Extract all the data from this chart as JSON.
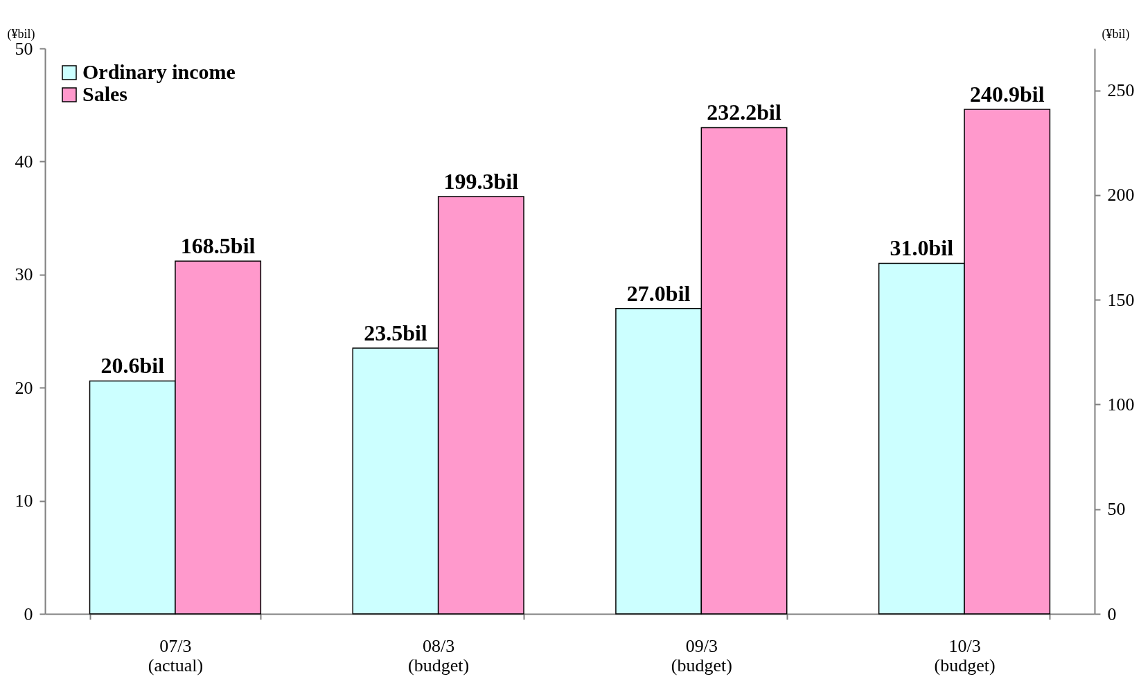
{
  "chart_data": {
    "type": "bar",
    "categories": [
      "07/3\n(actual)",
      "08/3\n(budget)",
      "09/3\n(budget)",
      "10/3\n(budget)"
    ],
    "ylabel": "(¥bil)",
    "y2label": "(¥bil)",
    "ylim": [
      0,
      50
    ],
    "yticks": [
      0,
      10,
      20,
      30,
      40,
      50
    ],
    "y2lim": [
      0,
      270
    ],
    "y2ticks": [
      0,
      50,
      100,
      150,
      200,
      250
    ],
    "series": [
      {
        "name": "Ordinary income",
        "color": "#ccffff",
        "values": [
          20.6,
          23.5,
          27.0,
          31.0
        ],
        "value_labels": [
          "20.6bil",
          "23.5bil",
          "27.0bil",
          "31.0bil"
        ]
      },
      {
        "name": "Sales",
        "color": "#ff99cc",
        "axis": "y2",
        "values": [
          168.5,
          199.3,
          232.2,
          240.9
        ],
        "value_labels": [
          "168.5bil",
          "199.3bil",
          "232.2bil",
          "240.9bil"
        ]
      }
    ],
    "legend": "top left",
    "grid": false
  }
}
